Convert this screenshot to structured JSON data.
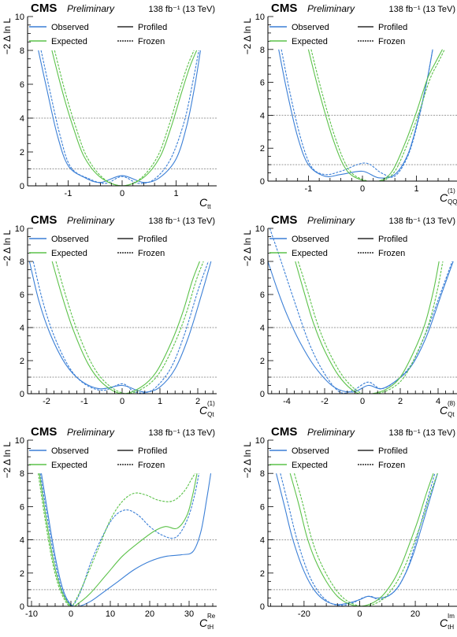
{
  "colors": {
    "observed": "#3b7fd6",
    "expected": "#5cc24a",
    "reference": "#9a9a9a",
    "axis": "#000000"
  },
  "chart_data": [
    {
      "type": "line",
      "header": {
        "experiment": "CMS",
        "status": "Preliminary",
        "lumi": "138 fb⁻¹ (13 TeV)"
      },
      "xlabel": "C",
      "xlabel_sub": "tt",
      "xlabel_sup": "",
      "ylabel": "−2 Δ ln L",
      "xlim": [
        -1.75,
        1.75
      ],
      "ylim": [
        0,
        10
      ],
      "xticks": [
        -1,
        0,
        1
      ],
      "yticks": [
        0,
        2,
        4,
        6,
        8,
        10
      ],
      "legend": {
        "observed": "Observed",
        "expected": "Expected",
        "profiled": "Profiled",
        "frozen": "Frozen"
      },
      "reference_lines": [
        1,
        4
      ],
      "series": [
        {
          "name": "Observed",
          "style": "solid",
          "x": [
            -1.55,
            -1.4,
            -1.2,
            -1.0,
            -0.7,
            -0.4,
            0.0,
            0.4,
            0.7,
            1.0,
            1.2,
            1.35,
            1.45
          ],
          "y": [
            8.0,
            5.8,
            3.0,
            1.2,
            0.5,
            0.2,
            0.6,
            0.2,
            0.5,
            1.6,
            3.6,
            6.0,
            8.0
          ]
        },
        {
          "name": "Observed",
          "style": "dashed",
          "x": [
            -1.5,
            -1.35,
            -1.15,
            -0.95,
            -0.6,
            -0.3,
            0.0,
            0.3,
            0.6,
            0.9,
            1.15,
            1.3,
            1.42
          ],
          "y": [
            8.0,
            5.8,
            3.0,
            1.1,
            0.4,
            0.15,
            0.55,
            0.15,
            0.4,
            1.6,
            3.8,
            6.0,
            8.0
          ]
        },
        {
          "name": "Expected",
          "style": "solid",
          "x": [
            -1.3,
            -1.1,
            -0.9,
            -0.7,
            -0.4,
            0.0,
            0.4,
            0.7,
            0.9,
            1.1,
            1.25,
            1.38
          ],
          "y": [
            8.0,
            5.5,
            3.4,
            1.7,
            0.5,
            0.0,
            0.5,
            1.7,
            3.4,
            5.5,
            7.0,
            8.0
          ]
        },
        {
          "name": "Expected",
          "style": "dashed",
          "x": [
            -1.25,
            -1.05,
            -0.85,
            -0.65,
            -0.35,
            0.0,
            0.35,
            0.65,
            0.85,
            1.05,
            1.2,
            1.33
          ],
          "y": [
            8.0,
            5.5,
            3.4,
            1.7,
            0.45,
            0.0,
            0.45,
            1.7,
            3.4,
            5.5,
            7.0,
            8.0
          ]
        }
      ]
    },
    {
      "type": "line",
      "header": {
        "experiment": "CMS",
        "status": "Preliminary",
        "lumi": "138 fb⁻¹ (13 TeV)"
      },
      "xlabel": "C",
      "xlabel_sub": "QQ",
      "xlabel_sup": "(1)",
      "ylabel": "−2 Δ ln L",
      "xlim": [
        -1.75,
        1.75
      ],
      "ylim": [
        0,
        10
      ],
      "xticks": [
        -1,
        0,
        1
      ],
      "yticks": [
        0,
        2,
        4,
        6,
        8,
        10
      ],
      "legend": {
        "observed": "Observed",
        "expected": "Expected",
        "profiled": "Profiled",
        "frozen": "Frozen"
      },
      "reference_lines": [
        1,
        4
      ],
      "series": [
        {
          "name": "Observed",
          "style": "solid",
          "x": [
            -1.55,
            -1.4,
            -1.2,
            -1.0,
            -0.7,
            -0.4,
            0.0,
            0.3,
            0.6,
            0.85,
            1.05,
            1.2,
            1.3
          ],
          "y": [
            8.0,
            5.5,
            2.7,
            1.0,
            0.3,
            0.4,
            0.6,
            0.2,
            0.4,
            1.7,
            4.0,
            6.2,
            8.0
          ]
        },
        {
          "name": "Observed",
          "style": "dashed",
          "x": [
            -1.5,
            -1.35,
            -1.15,
            -0.95,
            -0.7,
            -0.4,
            0.05,
            0.35,
            0.6,
            0.85,
            1.05,
            1.2,
            1.3
          ],
          "y": [
            8.0,
            5.5,
            2.7,
            0.9,
            0.4,
            0.6,
            1.1,
            0.5,
            0.3,
            1.6,
            3.9,
            6.2,
            8.0
          ]
        },
        {
          "name": "Expected",
          "style": "solid",
          "x": [
            -1.0,
            -0.8,
            -0.55,
            -0.3,
            0.0,
            0.3,
            0.55,
            0.8,
            1.0,
            1.2,
            1.35,
            1.48
          ],
          "y": [
            8.0,
            5.4,
            2.6,
            0.7,
            0.05,
            0.0,
            0.6,
            2.4,
            4.2,
            6.2,
            7.2,
            8.0
          ]
        },
        {
          "name": "Expected",
          "style": "dashed",
          "x": [
            -0.95,
            -0.75,
            -0.5,
            -0.25,
            0.05,
            0.35,
            0.6,
            0.85,
            1.05,
            1.25,
            1.4,
            1.52
          ],
          "y": [
            8.0,
            5.4,
            2.6,
            0.7,
            0.05,
            0.0,
            0.6,
            2.4,
            4.2,
            6.2,
            7.2,
            8.0
          ]
        }
      ]
    },
    {
      "type": "line",
      "header": {
        "experiment": "CMS",
        "status": "Preliminary",
        "lumi": "138 fb⁻¹ (13 TeV)"
      },
      "xlabel": "C",
      "xlabel_sub": "Qt",
      "xlabel_sup": "(1)",
      "ylabel": "−2 Δ ln L",
      "xlim": [
        -2.5,
        2.5
      ],
      "ylim": [
        0,
        10
      ],
      "xticks": [
        -2,
        -1,
        0,
        1,
        2
      ],
      "yticks": [
        0,
        2,
        4,
        6,
        8,
        10
      ],
      "legend": {
        "observed": "Observed",
        "expected": "Expected",
        "profiled": "Profiled",
        "frozen": "Frozen"
      },
      "reference_lines": [
        1,
        4
      ],
      "series": [
        {
          "name": "Observed",
          "style": "solid",
          "x": [
            -2.45,
            -2.2,
            -1.9,
            -1.5,
            -1.1,
            -0.6,
            0.0,
            0.4,
            0.65,
            1.0,
            1.4,
            1.75,
            2.1,
            2.35
          ],
          "y": [
            8.0,
            5.6,
            3.6,
            1.8,
            0.8,
            0.3,
            0.5,
            0.2,
            0.1,
            0.4,
            1.5,
            3.4,
            6.0,
            8.0
          ]
        },
        {
          "name": "Observed",
          "style": "dashed",
          "x": [
            -2.35,
            -2.1,
            -1.8,
            -1.4,
            -1.0,
            -0.5,
            0.0,
            0.3,
            0.6,
            0.9,
            1.3,
            1.65,
            2.0,
            2.28
          ],
          "y": [
            8.0,
            5.6,
            3.5,
            1.6,
            0.6,
            0.2,
            0.6,
            0.15,
            0.05,
            0.4,
            1.6,
            3.6,
            6.2,
            8.0
          ]
        },
        {
          "name": "Expected",
          "style": "solid",
          "x": [
            -1.85,
            -1.6,
            -1.3,
            -0.9,
            -0.5,
            0.0,
            0.5,
            0.9,
            1.3,
            1.6,
            1.85,
            2.05
          ],
          "y": [
            8.0,
            6.0,
            3.9,
            1.8,
            0.6,
            0.0,
            0.4,
            1.3,
            3.1,
            4.9,
            6.8,
            8.0
          ]
        },
        {
          "name": "Expected",
          "style": "dashed",
          "x": [
            -1.75,
            -1.5,
            -1.2,
            -0.8,
            -0.4,
            0.1,
            0.6,
            1.0,
            1.4,
            1.7,
            1.95,
            2.15
          ],
          "y": [
            8.0,
            6.0,
            3.9,
            1.8,
            0.6,
            0.0,
            0.4,
            1.3,
            3.1,
            4.9,
            6.8,
            8.0
          ]
        }
      ]
    },
    {
      "type": "line",
      "header": {
        "experiment": "CMS",
        "status": "Preliminary",
        "lumi": "138 fb⁻¹ (13 TeV)"
      },
      "xlabel": "C",
      "xlabel_sub": "Qt",
      "xlabel_sup": "(8)",
      "ylabel": "−2 Δ ln L",
      "xlim": [
        -5.0,
        5.0
      ],
      "ylim": [
        0,
        10
      ],
      "xticks": [
        -4,
        -2,
        0,
        2,
        4
      ],
      "yticks": [
        0,
        2,
        4,
        6,
        8,
        10
      ],
      "legend": {
        "observed": "Observed",
        "expected": "Expected",
        "profiled": "Profiled",
        "frozen": "Frozen"
      },
      "reference_lines": [
        1,
        4
      ],
      "series": [
        {
          "name": "Observed",
          "style": "solid",
          "x": [
            -5.0,
            -4.5,
            -4.0,
            -3.3,
            -2.5,
            -1.5,
            -0.5,
            0.3,
            1.0,
            1.8,
            2.6,
            3.4,
            4.2,
            4.8
          ],
          "y": [
            8.0,
            6.3,
            4.8,
            3.1,
            1.6,
            0.4,
            0.1,
            0.5,
            0.3,
            0.8,
            1.7,
            3.5,
            6.1,
            8.0
          ]
        },
        {
          "name": "Observed",
          "style": "dashed",
          "x": [
            -4.9,
            -4.3,
            -3.6,
            -2.8,
            -2.0,
            -1.2,
            -0.5,
            0.3,
            1.0,
            1.8,
            2.6,
            3.4,
            4.2,
            4.75
          ],
          "y": [
            10.0,
            8.0,
            5.6,
            3.0,
            1.2,
            0.1,
            0.2,
            0.7,
            0.3,
            0.8,
            1.8,
            3.8,
            6.3,
            8.0
          ]
        },
        {
          "name": "Expected",
          "style": "solid",
          "x": [
            -3.55,
            -3.1,
            -2.6,
            -2.0,
            -1.2,
            -0.3,
            0.5,
            1.3,
            2.0,
            2.7,
            3.3,
            3.75,
            4.05
          ],
          "y": [
            8.0,
            6.2,
            4.3,
            2.6,
            1.0,
            0.05,
            0.0,
            0.3,
            1.0,
            2.5,
            4.2,
            6.2,
            8.0
          ]
        },
        {
          "name": "Expected",
          "style": "dashed",
          "x": [
            -3.4,
            -2.9,
            -2.4,
            -1.8,
            -1.0,
            -0.1,
            0.7,
            1.5,
            2.2,
            2.9,
            3.5,
            3.95,
            4.25
          ],
          "y": [
            8.0,
            6.2,
            4.3,
            2.6,
            1.0,
            0.05,
            0.0,
            0.3,
            1.0,
            2.5,
            4.2,
            6.2,
            8.0
          ]
        }
      ]
    },
    {
      "type": "line",
      "header": {
        "experiment": "CMS",
        "status": "Preliminary",
        "lumi": "138 fb⁻¹ (13 TeV)"
      },
      "xlabel": "C",
      "xlabel_sub": "tH",
      "xlabel_sup": "Re",
      "ylabel": "−2 Δ ln L",
      "xlim": [
        -11,
        37
      ],
      "ylim": [
        0,
        10
      ],
      "xticks": [
        -10,
        0,
        10,
        20,
        30
      ],
      "yticks": [
        0,
        2,
        4,
        6,
        8,
        10
      ],
      "legend": {
        "observed": "Observed",
        "expected": "Expected",
        "profiled": "Profiled",
        "frozen": "Frozen"
      },
      "reference_lines": [
        1,
        4
      ],
      "series": [
        {
          "name": "Observed",
          "style": "solid",
          "x": [
            -7.5,
            -6.0,
            -4.0,
            -2.0,
            0.0,
            2.0,
            5.0,
            8.0,
            12.0,
            16.0,
            20.0,
            24.0,
            28.0,
            31.0,
            33.0,
            34.5,
            35.5
          ],
          "y": [
            8.0,
            5.8,
            3.0,
            1.0,
            0.1,
            0.0,
            0.3,
            0.8,
            1.5,
            2.2,
            2.7,
            3.0,
            3.1,
            3.3,
            4.5,
            6.5,
            8.0
          ]
        },
        {
          "name": "Observed",
          "style": "dashed",
          "x": [
            -7.8,
            -6.3,
            -4.3,
            -2.3,
            -0.2,
            1.0,
            3.0,
            5.0,
            8.0,
            11.0,
            14.0,
            17.0,
            20.0,
            23.0,
            26.0,
            28.0,
            30.0,
            31.5,
            32.5
          ],
          "y": [
            8.0,
            5.8,
            3.0,
            1.0,
            0.1,
            0.2,
            1.2,
            2.6,
            4.2,
            5.4,
            5.8,
            5.5,
            4.8,
            4.3,
            4.1,
            4.5,
            5.5,
            6.8,
            8.0
          ]
        },
        {
          "name": "Expected",
          "style": "solid",
          "x": [
            -8.0,
            -6.5,
            -4.5,
            -2.5,
            0.0,
            2.0,
            5.0,
            9.0,
            13.0,
            17.0,
            21.0,
            24.0,
            27.0,
            29.5,
            31.0,
            32.0
          ],
          "y": [
            8.0,
            5.6,
            2.8,
            1.0,
            0.0,
            0.2,
            0.8,
            1.9,
            3.0,
            3.8,
            4.5,
            4.8,
            4.7,
            5.5,
            6.8,
            8.0
          ]
        },
        {
          "name": "Expected",
          "style": "dashed",
          "x": [
            -8.3,
            -6.8,
            -4.8,
            -2.8,
            -0.3,
            1.5,
            4.0,
            7.0,
            10.0,
            13.0,
            16.0,
            19.0,
            22.0,
            25.0,
            27.0,
            29.0,
            30.5,
            31.5
          ],
          "y": [
            8.0,
            5.6,
            2.8,
            1.0,
            0.0,
            0.5,
            1.8,
            3.5,
            5.2,
            6.3,
            6.8,
            6.7,
            6.4,
            6.3,
            6.5,
            7.0,
            7.6,
            8.0
          ]
        }
      ]
    },
    {
      "type": "line",
      "header": {
        "experiment": "CMS",
        "status": "Preliminary",
        "lumi": "138 fb⁻¹ (13 TeV)"
      },
      "xlabel": "C",
      "xlabel_sub": "tH",
      "xlabel_sup": "Im",
      "ylabel": "−2 Δ ln L",
      "xlim": [
        -33,
        35
      ],
      "ylim": [
        0,
        10
      ],
      "xticks": [
        -20,
        0,
        20
      ],
      "yticks": [
        0,
        2,
        4,
        6,
        8,
        10
      ],
      "legend": {
        "observed": "Observed",
        "expected": "Expected",
        "profiled": "Profiled",
        "frozen": "Frozen"
      },
      "reference_lines": [
        1,
        4
      ],
      "series": [
        {
          "name": "Observed",
          "style": "solid",
          "x": [
            -30.0,
            -27.0,
            -24.0,
            -20.0,
            -16.0,
            -12.0,
            -8.0,
            -4.0,
            0.0,
            3.0,
            6.0,
            10.0,
            13.0,
            16.0,
            19.0,
            22.0,
            25.0,
            28.0
          ],
          "y": [
            8.0,
            6.0,
            4.0,
            2.1,
            0.9,
            0.3,
            0.1,
            0.2,
            0.4,
            0.6,
            0.5,
            0.6,
            1.0,
            1.8,
            3.0,
            4.6,
            6.3,
            8.0
          ]
        },
        {
          "name": "Observed",
          "style": "dashed",
          "x": [
            -28.5,
            -25.5,
            -22.5,
            -18.5,
            -14.5,
            -10.5,
            -6.5,
            -2.5,
            1.0,
            4.0,
            7.0,
            11.0,
            14.0,
            17.0,
            19.5,
            22.0,
            24.5,
            27.0
          ],
          "y": [
            8.0,
            6.0,
            4.0,
            2.0,
            0.8,
            0.2,
            0.05,
            0.2,
            0.5,
            0.6,
            0.4,
            0.7,
            1.2,
            2.2,
            3.5,
            5.0,
            6.5,
            8.0
          ]
        },
        {
          "name": "Expected",
          "style": "solid",
          "x": [
            -25.0,
            -22.0,
            -19.0,
            -16.0,
            -12.0,
            -8.0,
            -4.0,
            0.0,
            4.0,
            8.0,
            12.0,
            15.0,
            18.0,
            21.0,
            24.0,
            26.5
          ],
          "y": [
            8.0,
            6.2,
            4.2,
            2.8,
            1.5,
            0.6,
            0.15,
            0.0,
            0.15,
            0.6,
            1.5,
            2.5,
            3.8,
            5.2,
            6.8,
            8.0
          ]
        },
        {
          "name": "Expected",
          "style": "dashed",
          "x": [
            -23.5,
            -20.5,
            -17.5,
            -14.5,
            -10.5,
            -6.5,
            -2.5,
            1.5,
            5.5,
            9.5,
            13.5,
            16.5,
            19.5,
            22.5,
            25.5,
            28.0
          ],
          "y": [
            8.0,
            6.2,
            4.2,
            2.8,
            1.5,
            0.6,
            0.15,
            0.0,
            0.15,
            0.6,
            1.5,
            2.5,
            3.8,
            5.2,
            6.8,
            8.0
          ]
        }
      ]
    }
  ]
}
